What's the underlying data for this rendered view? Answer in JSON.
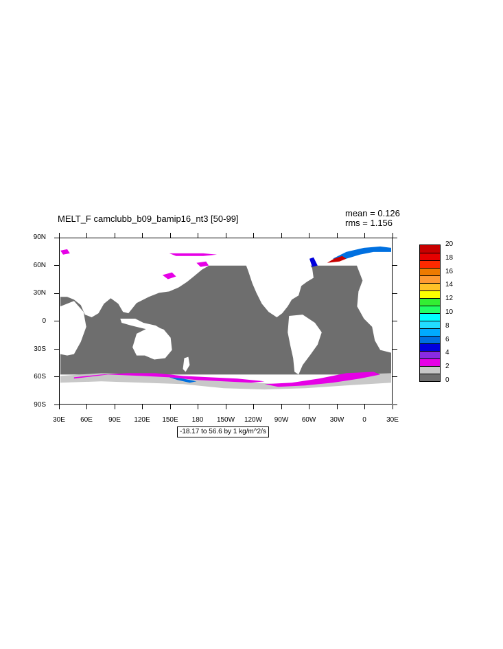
{
  "title": "MELT_F camclubb_b09_bamip16_nt3 [50-99]",
  "stats": {
    "mean": "mean = 0.126",
    "rms": "rms = 1.156"
  },
  "range_label": "-18.17 to 56.6 by 1 kg/m^2/s",
  "lat_labels": [
    "90N",
    "60N",
    "30N",
    "0",
    "30S",
    "60S",
    "90S"
  ],
  "lon_labels": [
    "30E",
    "60E",
    "90E",
    "120E",
    "150E",
    "180",
    "150W",
    "120W",
    "90W",
    "60W",
    "30W",
    "0",
    "30E"
  ],
  "colorbar": {
    "labels": [
      "20",
      "18",
      "16",
      "14",
      "12",
      "10",
      "8",
      "6",
      "4",
      "2",
      "0"
    ],
    "colors": [
      "#c80000",
      "#e60000",
      "#ff2a00",
      "#ee7a00",
      "#ff9a33",
      "#ffc227",
      "#ffff00",
      "#33ee33",
      "#22ff66",
      "#00ffff",
      "#22ddff",
      "#00aaff",
      "#0070e0",
      "#0000dd",
      "#8a2be2",
      "#e600e6",
      "#c8c8c8",
      "#6e6e6e"
    ]
  },
  "colors": {
    "ocean": "#6e6e6e",
    "land": "#ffffff",
    "ice_edge": "#c8c8c8",
    "melt": "#e600e6"
  }
}
